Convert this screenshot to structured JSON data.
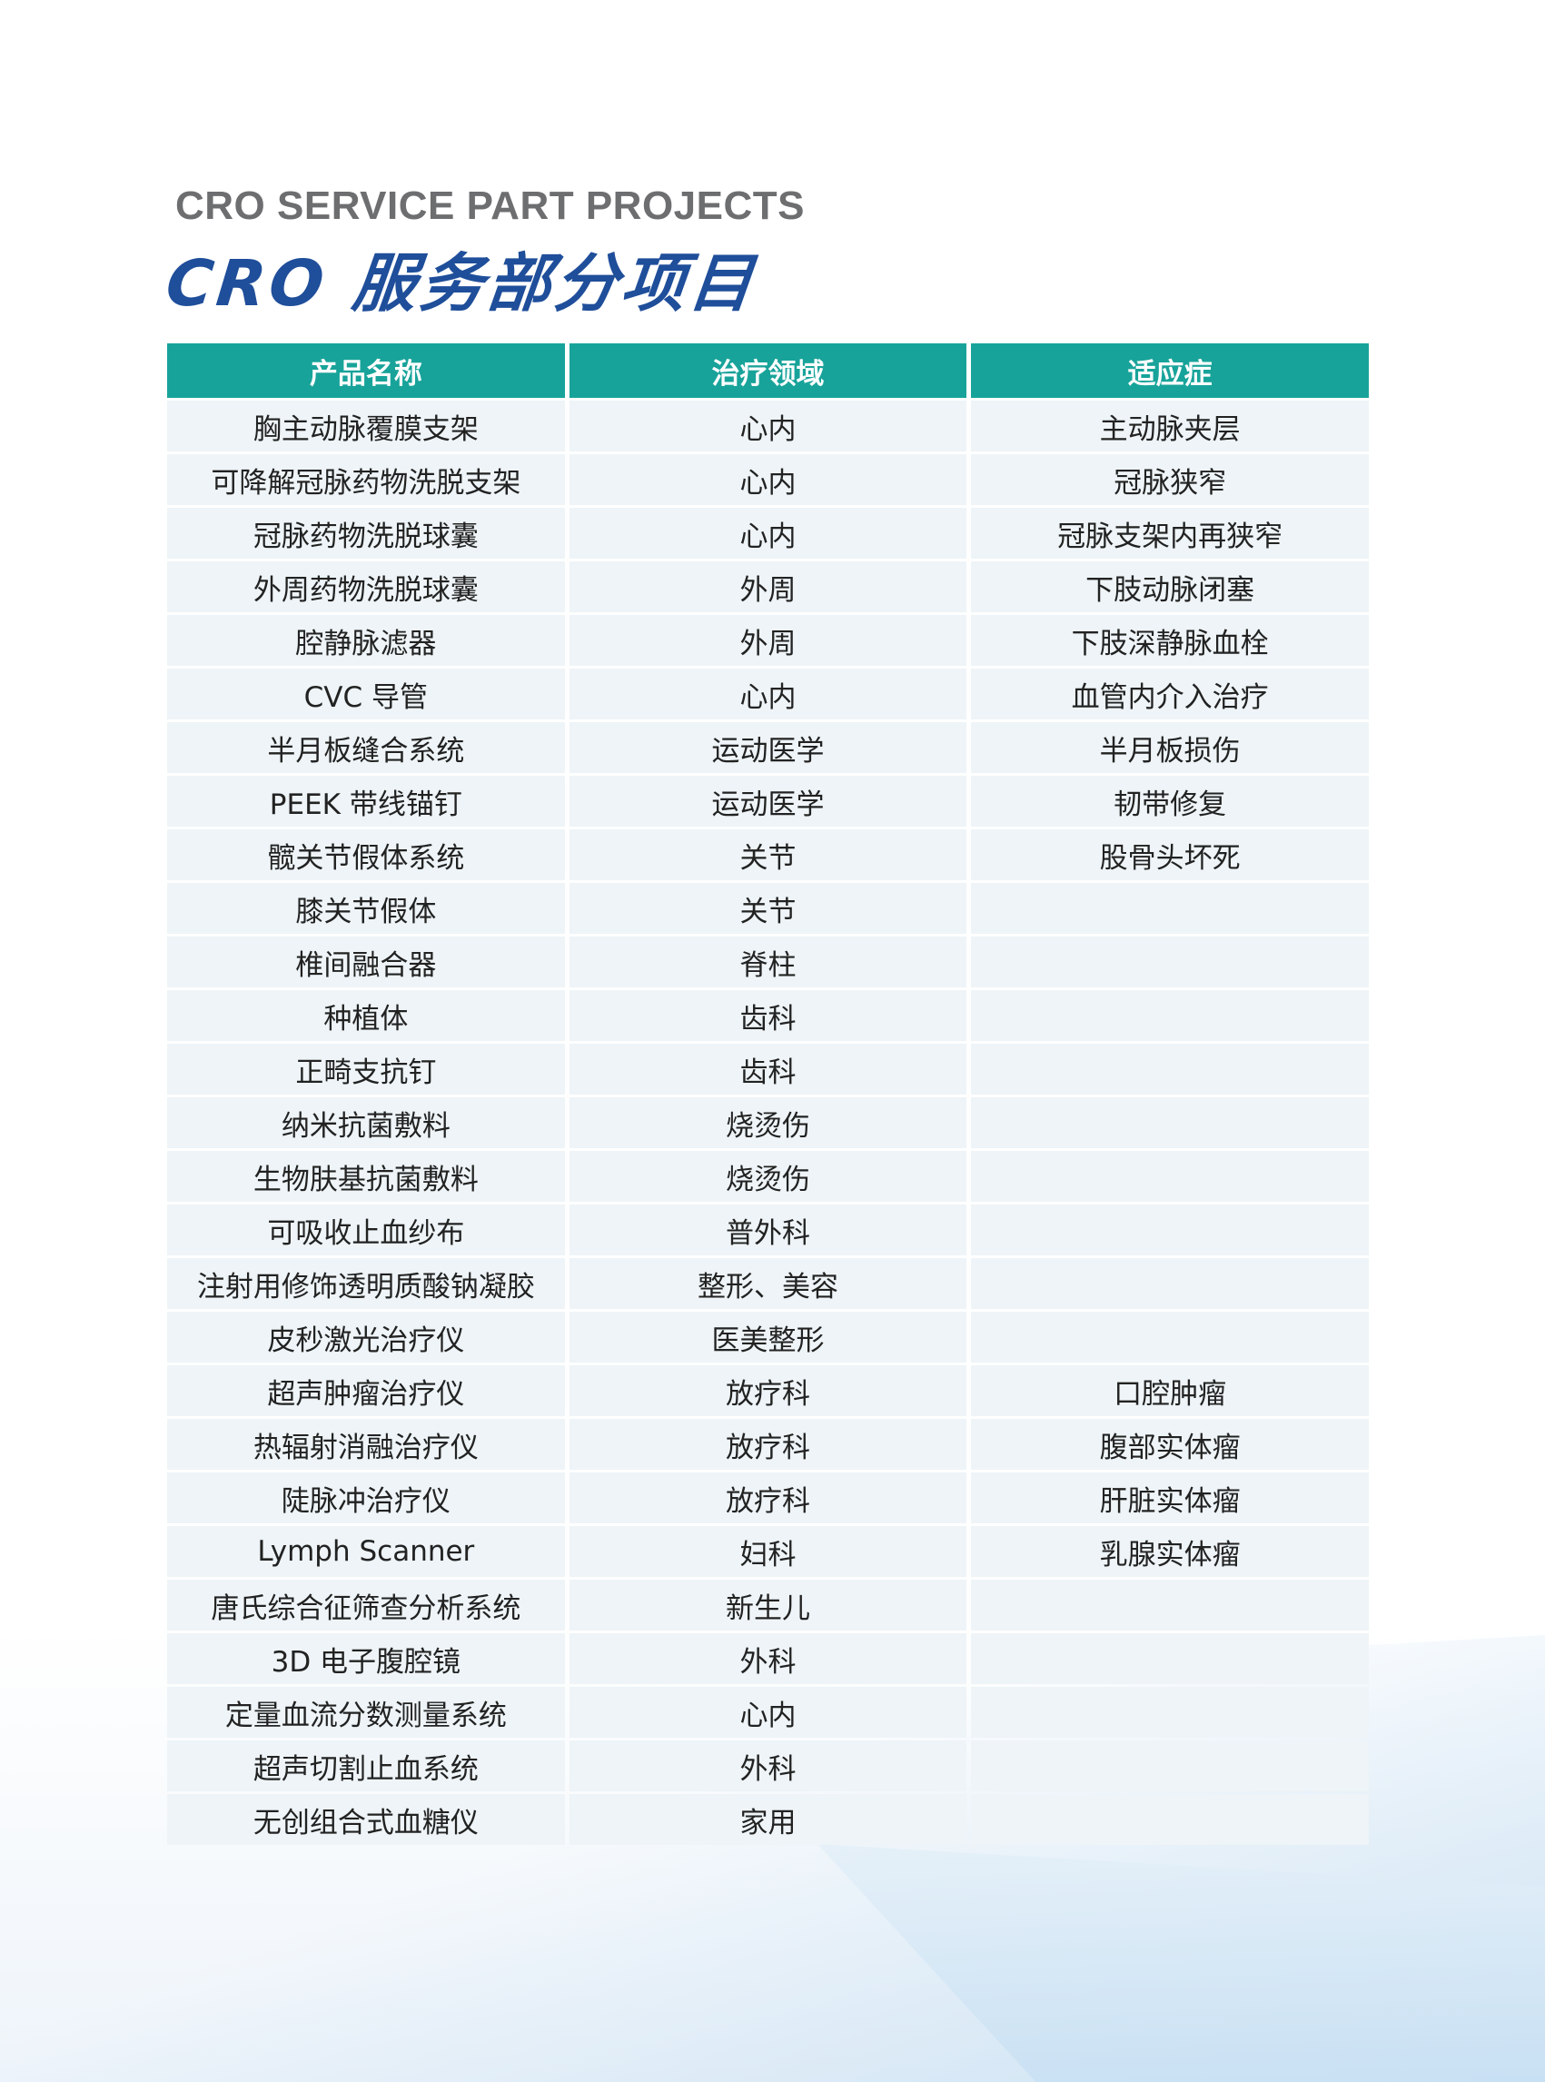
{
  "title_en": "CRO SERVICE PART PROJECTS",
  "title_zh": "CRO 服务部分项目",
  "table": {
    "headers": [
      "产品名称",
      "治疗领域",
      "适应症"
    ],
    "rows": [
      [
        "胸主动脉覆膜支架",
        "心内",
        "主动脉夹层"
      ],
      [
        "可降解冠脉药物洗脱支架",
        "心内",
        "冠脉狭窄"
      ],
      [
        "冠脉药物洗脱球囊",
        "心内",
        "冠脉支架内再狭窄"
      ],
      [
        "外周药物洗脱球囊",
        "外周",
        "下肢动脉闭塞"
      ],
      [
        "腔静脉滤器",
        "外周",
        "下肢深静脉血栓"
      ],
      [
        "CVC 导管",
        "心内",
        "血管内介入治疗"
      ],
      [
        "半月板缝合系统",
        "运动医学",
        "半月板损伤"
      ],
      [
        "PEEK 带线锚钉",
        "运动医学",
        "韧带修复"
      ],
      [
        "髋关节假体系统",
        "关节",
        "股骨头坏死"
      ],
      [
        "膝关节假体",
        "关节",
        ""
      ],
      [
        "椎间融合器",
        "脊柱",
        ""
      ],
      [
        "种植体",
        "齿科",
        ""
      ],
      [
        "正畸支抗钉",
        "齿科",
        ""
      ],
      [
        "纳米抗菌敷料",
        "烧烫伤",
        ""
      ],
      [
        "生物肤基抗菌敷料",
        "烧烫伤",
        ""
      ],
      [
        "可吸收止血纱布",
        "普外科",
        ""
      ],
      [
        "注射用修饰透明质酸钠凝胶",
        "整形、美容",
        ""
      ],
      [
        "皮秒激光治疗仪",
        "医美整形",
        ""
      ],
      [
        "超声肿瘤治疗仪",
        "放疗科",
        "口腔肿瘤"
      ],
      [
        "热辐射消融治疗仪",
        "放疗科",
        "腹部实体瘤"
      ],
      [
        "陡脉冲治疗仪",
        "放疗科",
        "肝脏实体瘤"
      ],
      [
        "Lymph Scanner",
        "妇科",
        "乳腺实体瘤"
      ],
      [
        "唐氏综合征筛查分析系统",
        "新生儿",
        ""
      ],
      [
        "3D 电子腹腔镜",
        "外科",
        ""
      ],
      [
        "定量血流分数测量系统",
        "心内",
        ""
      ],
      [
        "超声切割止血系统",
        "外科",
        ""
      ],
      [
        "无创组合式血糖仪",
        "家用",
        ""
      ]
    ]
  },
  "colors": {
    "header_bg": "#18a39a",
    "title_blue": "#1f4e9a",
    "title_gray": "#6d6e70",
    "cell_bg": "#eef4f7"
  }
}
